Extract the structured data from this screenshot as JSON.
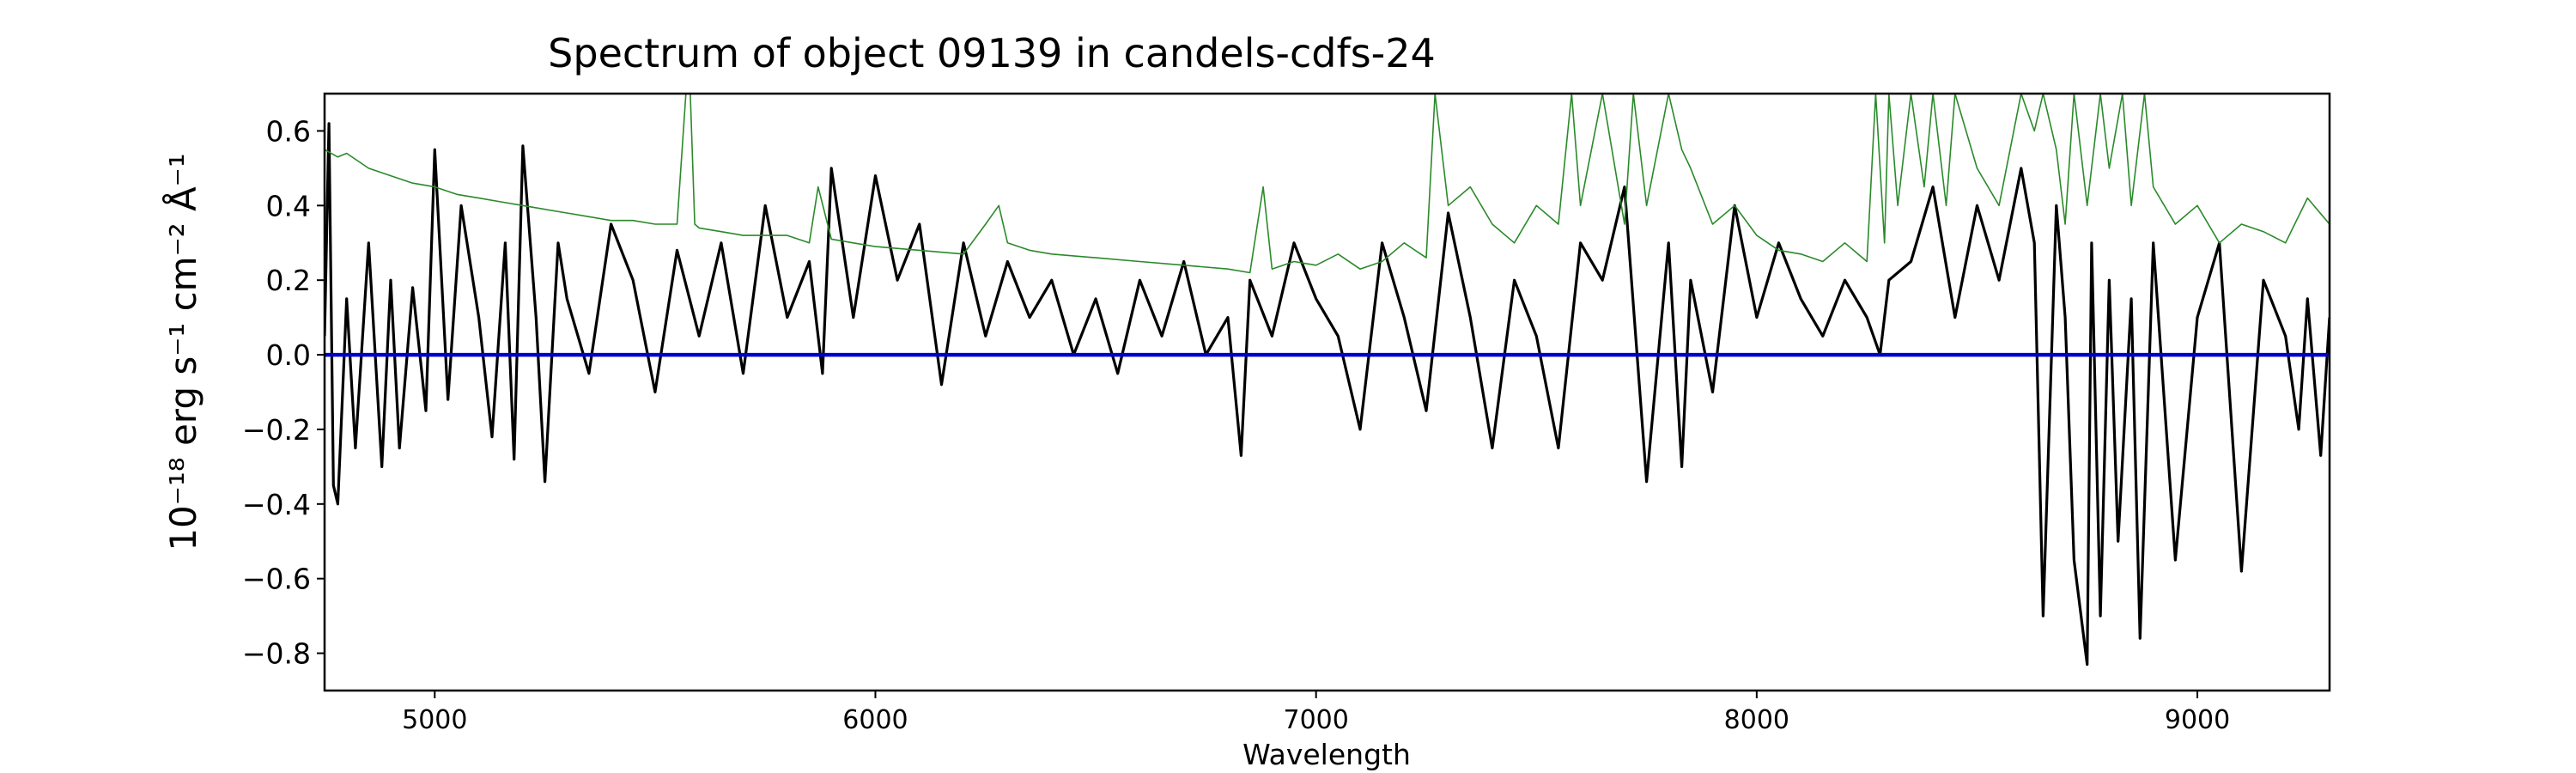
{
  "chart_data": {
    "type": "line",
    "title": "Spectrum of object 09139 in candels-cdfs-24",
    "xlabel": "Wavelength",
    "ylabel": "10⁻¹⁸ erg s⁻¹ cm⁻² Å⁻¹",
    "xlim": [
      4750,
      9300
    ],
    "ylim": [
      -0.9,
      0.7
    ],
    "x_ticks": [
      5000,
      6000,
      7000,
      8000,
      9000
    ],
    "y_ticks": [
      -0.8,
      -0.6,
      -0.4,
      -0.2,
      0.0,
      0.2,
      0.4,
      0.6
    ],
    "y_tick_labels": [
      "−0.8",
      "−0.6",
      "−0.4",
      "−0.2",
      "0.0",
      "0.2",
      "0.4",
      "0.6"
    ],
    "grid": false,
    "series": [
      {
        "kind": "flux",
        "color": "#000000",
        "x": [
          4750,
          4760,
          4770,
          4780,
          4800,
          4820,
          4850,
          4880,
          4900,
          4920,
          4950,
          4980,
          5000,
          5030,
          5060,
          5100,
          5130,
          5160,
          5180,
          5200,
          5230,
          5250,
          5280,
          5300,
          5350,
          5400,
          5450,
          5500,
          5550,
          5600,
          5650,
          5700,
          5750,
          5800,
          5850,
          5880,
          5900,
          5950,
          6000,
          6050,
          6100,
          6150,
          6200,
          6250,
          6300,
          6350,
          6400,
          6450,
          6500,
          6550,
          6600,
          6650,
          6700,
          6750,
          6800,
          6830,
          6850,
          6900,
          6950,
          7000,
          7050,
          7100,
          7150,
          7200,
          7250,
          7300,
          7350,
          7400,
          7450,
          7500,
          7550,
          7600,
          7650,
          7700,
          7750,
          7800,
          7830,
          7850,
          7900,
          7950,
          8000,
          8050,
          8100,
          8150,
          8200,
          8250,
          8280,
          8300,
          8350,
          8400,
          8450,
          8500,
          8550,
          8600,
          8630,
          8650,
          8680,
          8700,
          8720,
          8750,
          8760,
          8780,
          8800,
          8820,
          8850,
          8870,
          8900,
          8950,
          9000,
          9050,
          9100,
          9150,
          9200,
          9230,
          9250,
          9280,
          9300
        ],
        "y": [
          0.05,
          0.62,
          -0.35,
          -0.4,
          0.15,
          -0.25,
          0.3,
          -0.3,
          0.2,
          -0.25,
          0.18,
          -0.15,
          0.55,
          -0.12,
          0.4,
          0.1,
          -0.22,
          0.3,
          -0.28,
          0.56,
          0.1,
          -0.34,
          0.3,
          0.15,
          -0.05,
          0.35,
          0.2,
          -0.1,
          0.28,
          0.05,
          0.3,
          -0.05,
          0.4,
          0.1,
          0.25,
          -0.05,
          0.5,
          0.1,
          0.48,
          0.2,
          0.35,
          -0.08,
          0.3,
          0.05,
          0.25,
          0.1,
          0.2,
          0.0,
          0.15,
          -0.05,
          0.2,
          0.05,
          0.25,
          0.0,
          0.1,
          -0.27,
          0.2,
          0.05,
          0.3,
          0.15,
          0.05,
          -0.2,
          0.3,
          0.1,
          -0.15,
          0.38,
          0.1,
          -0.25,
          0.2,
          0.05,
          -0.25,
          0.3,
          0.2,
          0.45,
          -0.34,
          0.3,
          -0.3,
          0.2,
          -0.1,
          0.4,
          0.1,
          0.3,
          0.15,
          0.05,
          0.2,
          0.1,
          0.0,
          0.2,
          0.25,
          0.45,
          0.1,
          0.4,
          0.2,
          0.5,
          0.3,
          -0.7,
          0.4,
          0.1,
          -0.55,
          -0.83,
          0.3,
          -0.7,
          0.2,
          -0.5,
          0.15,
          -0.76,
          0.3,
          -0.55,
          0.1,
          0.3,
          -0.58,
          0.2,
          0.05,
          -0.2,
          0.15,
          -0.27,
          0.1
        ]
      },
      {
        "kind": "error",
        "color": "#2a8a2a",
        "x": [
          4750,
          4780,
          4800,
          4850,
          4900,
          4950,
          5000,
          5050,
          5100,
          5150,
          5200,
          5250,
          5300,
          5350,
          5400,
          5450,
          5500,
          5550,
          5570,
          5580,
          5590,
          5600,
          5650,
          5700,
          5800,
          5850,
          5870,
          5900,
          5950,
          6000,
          6100,
          6200,
          6250,
          6280,
          6300,
          6350,
          6400,
          6500,
          6600,
          6700,
          6800,
          6850,
          6880,
          6900,
          6950,
          7000,
          7050,
          7100,
          7150,
          7200,
          7250,
          7270,
          7300,
          7350,
          7400,
          7450,
          7500,
          7550,
          7580,
          7600,
          7650,
          7700,
          7720,
          7750,
          7800,
          7830,
          7850,
          7900,
          7950,
          8000,
          8050,
          8100,
          8150,
          8200,
          8250,
          8270,
          8290,
          8300,
          8320,
          8350,
          8380,
          8400,
          8430,
          8450,
          8500,
          8550,
          8600,
          8630,
          8650,
          8680,
          8700,
          8720,
          8750,
          8780,
          8800,
          8830,
          8850,
          8880,
          8900,
          8950,
          9000,
          9050,
          9100,
          9150,
          9200,
          9250,
          9300
        ],
        "y": [
          0.55,
          0.53,
          0.54,
          0.5,
          0.48,
          0.46,
          0.45,
          0.43,
          0.42,
          0.41,
          0.4,
          0.39,
          0.38,
          0.37,
          0.36,
          0.36,
          0.35,
          0.35,
          0.7,
          0.7,
          0.35,
          0.34,
          0.33,
          0.32,
          0.32,
          0.3,
          0.45,
          0.31,
          0.3,
          0.29,
          0.28,
          0.27,
          0.35,
          0.4,
          0.3,
          0.28,
          0.27,
          0.26,
          0.25,
          0.24,
          0.23,
          0.22,
          0.45,
          0.23,
          0.25,
          0.24,
          0.27,
          0.23,
          0.25,
          0.3,
          0.26,
          0.7,
          0.4,
          0.45,
          0.35,
          0.3,
          0.4,
          0.35,
          0.7,
          0.4,
          0.7,
          0.35,
          0.7,
          0.4,
          0.7,
          0.55,
          0.5,
          0.35,
          0.4,
          0.32,
          0.28,
          0.27,
          0.25,
          0.3,
          0.25,
          0.7,
          0.3,
          0.7,
          0.4,
          0.7,
          0.45,
          0.7,
          0.4,
          0.7,
          0.5,
          0.4,
          0.7,
          0.6,
          0.7,
          0.55,
          0.35,
          0.7,
          0.4,
          0.7,
          0.5,
          0.7,
          0.4,
          0.7,
          0.45,
          0.35,
          0.4,
          0.3,
          0.35,
          0.33,
          0.3,
          0.42,
          0.35
        ]
      },
      {
        "kind": "zero",
        "color": "#0000cc",
        "x": [
          4750,
          9300
        ],
        "y": [
          0.0,
          0.0
        ]
      }
    ]
  }
}
